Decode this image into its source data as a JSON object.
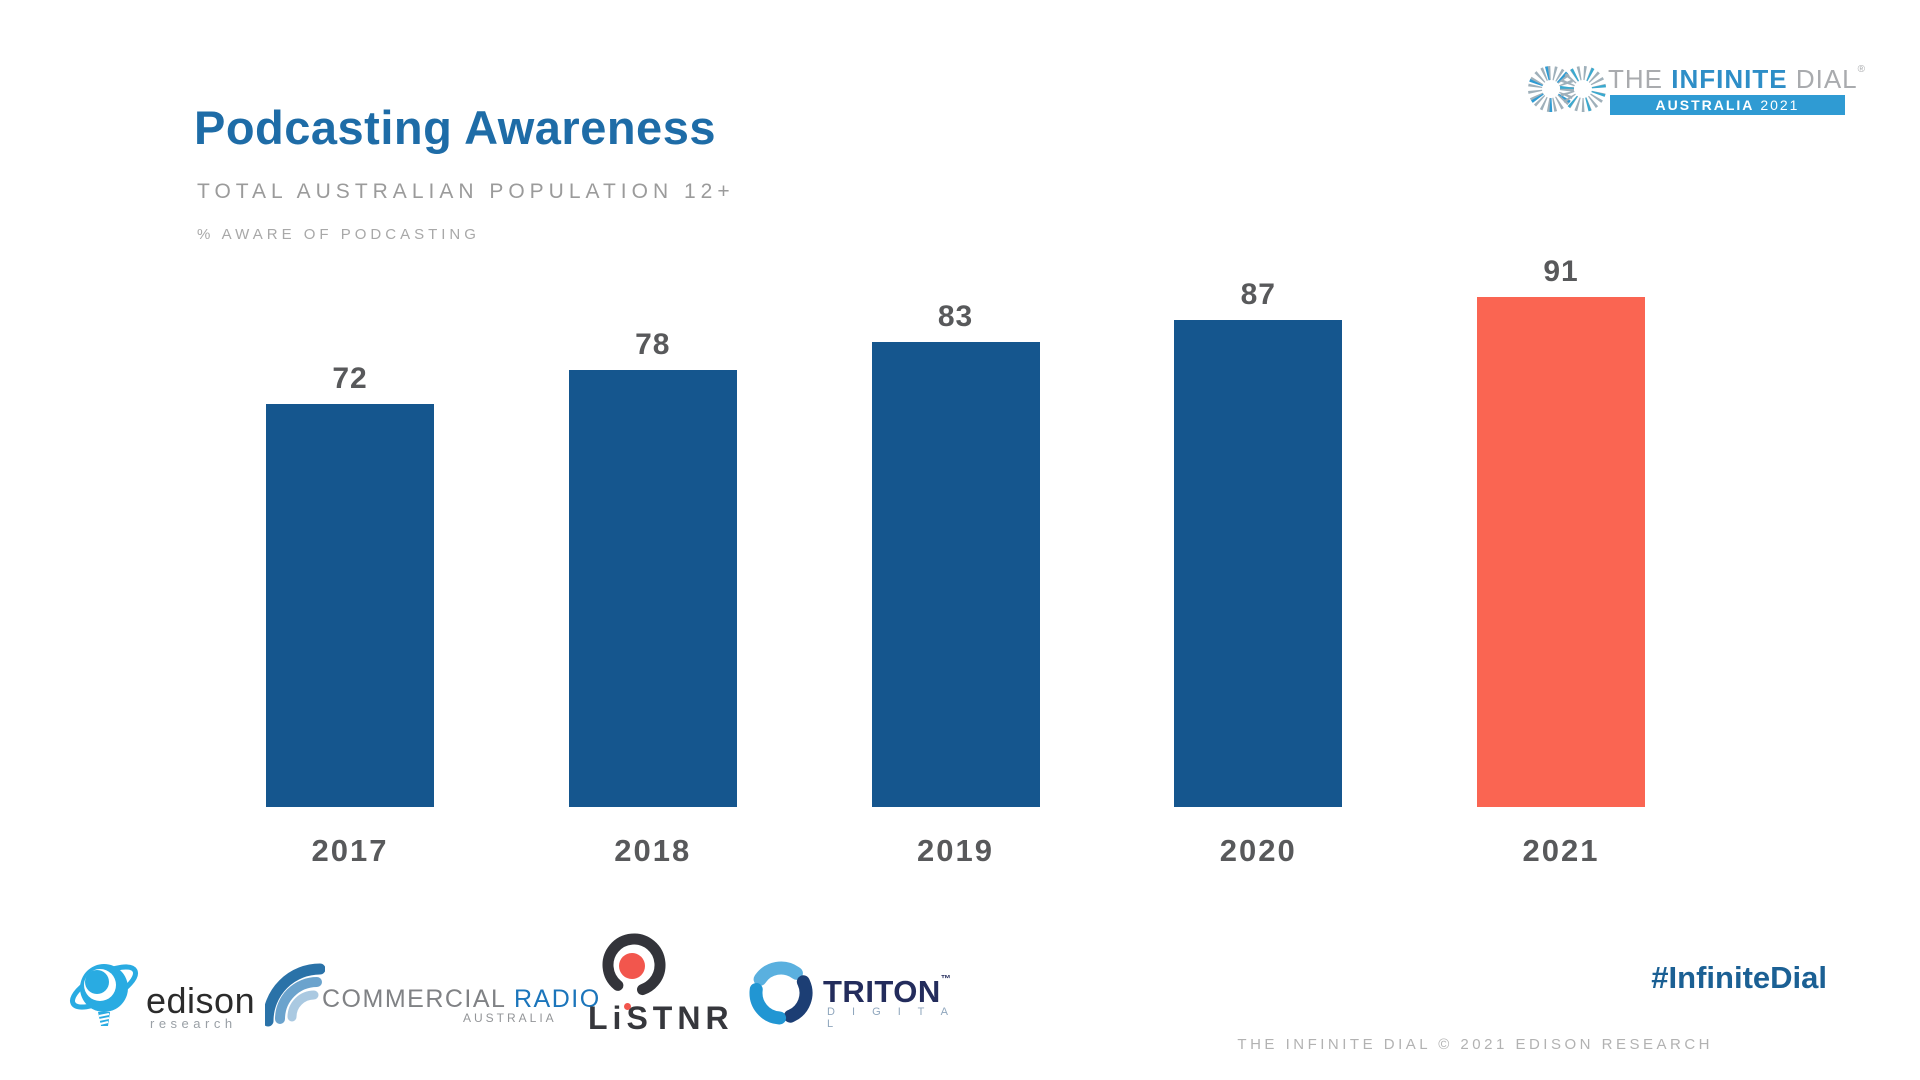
{
  "slide": {
    "title": "Podcasting Awareness",
    "subtitle": "TOTAL AUSTRALIAN POPULATION 12+",
    "kicker": "% AWARE OF PODCASTING",
    "hashtag": "#InfiniteDial",
    "footer": "THE INFINITE DIAL  © 2021 EDISON RESEARCH"
  },
  "brand": {
    "the": "THE",
    "infinite": "INFINITE",
    "dial": "DIAL",
    "reg": "®",
    "banner_country": "AUSTRALIA",
    "banner_year": "2021"
  },
  "chart_data": {
    "type": "bar",
    "title": "Podcasting Awareness",
    "subtitle": "Total Australian Population 12+",
    "ylabel": "% Aware of Podcasting",
    "categories": [
      "2017",
      "2018",
      "2019",
      "2020",
      "2021"
    ],
    "values": [
      72,
      78,
      83,
      87,
      91
    ],
    "ylim": [
      0,
      100
    ],
    "grid": false,
    "legend": false,
    "highlight_index": 4,
    "bar_color": "#15568E",
    "highlight_color": "#FA6552",
    "label_color": "#58595b"
  },
  "partners": {
    "edison": {
      "name": "edison",
      "sub": "research"
    },
    "commercial_radio": {
      "word_gray": "COMMERCIAL ",
      "word_blue": "RADIO",
      "sub": "AUSTRALIA"
    },
    "listnr": {
      "name": "LiSTNR"
    },
    "triton": {
      "name": "TRITON",
      "tm": "™",
      "sub": "D I G I T A L"
    }
  }
}
